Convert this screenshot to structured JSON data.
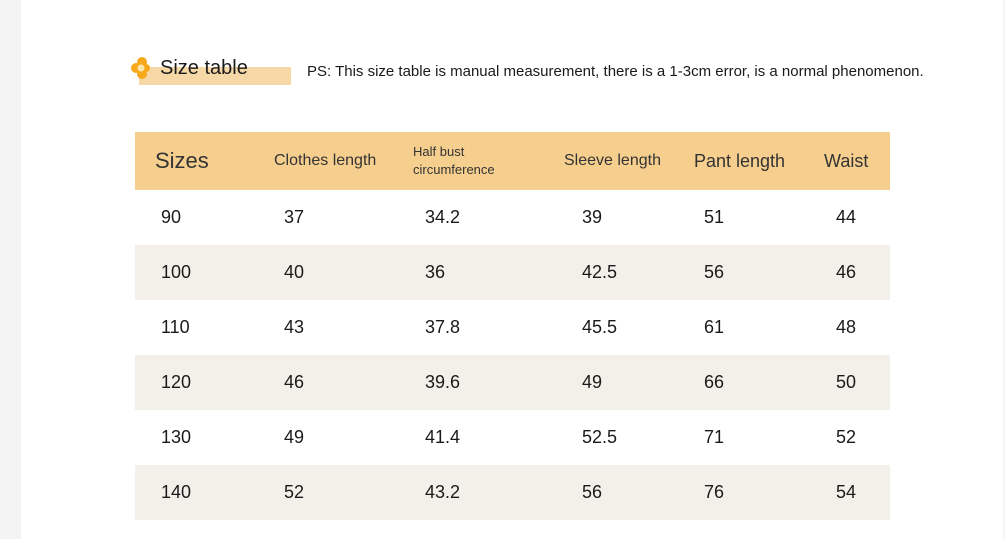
{
  "header": {
    "title": "Size table",
    "note": "PS: This size table is manual measurement, there is a 1-3cm error, is a normal phenomenon."
  },
  "table": {
    "columns": [
      "Sizes",
      "Clothes length",
      "Half bust circumference",
      "Sleeve length",
      "Pant length",
      "Waist"
    ],
    "rows": [
      [
        "90",
        "37",
        "34.2",
        "39",
        "51",
        "44"
      ],
      [
        "100",
        "40",
        "36",
        "42.5",
        "56",
        "46"
      ],
      [
        "110",
        "43",
        "37.8",
        "45.5",
        "61",
        "48"
      ],
      [
        "120",
        "46",
        "39.6",
        "49",
        "66",
        "50"
      ],
      [
        "130",
        "49",
        "41.4",
        "52.5",
        "71",
        "52"
      ],
      [
        "140",
        "52",
        "43.2",
        "56",
        "76",
        "54"
      ]
    ]
  },
  "colors": {
    "header_bg": "#f6cf8f",
    "title_underline": "#f5d8a6",
    "alt_row_bg": "#f3f0ea",
    "icon_petal": "#f7a81b",
    "icon_center": "#f5c84a"
  },
  "icons": {
    "title_icon": "flower-icon"
  }
}
